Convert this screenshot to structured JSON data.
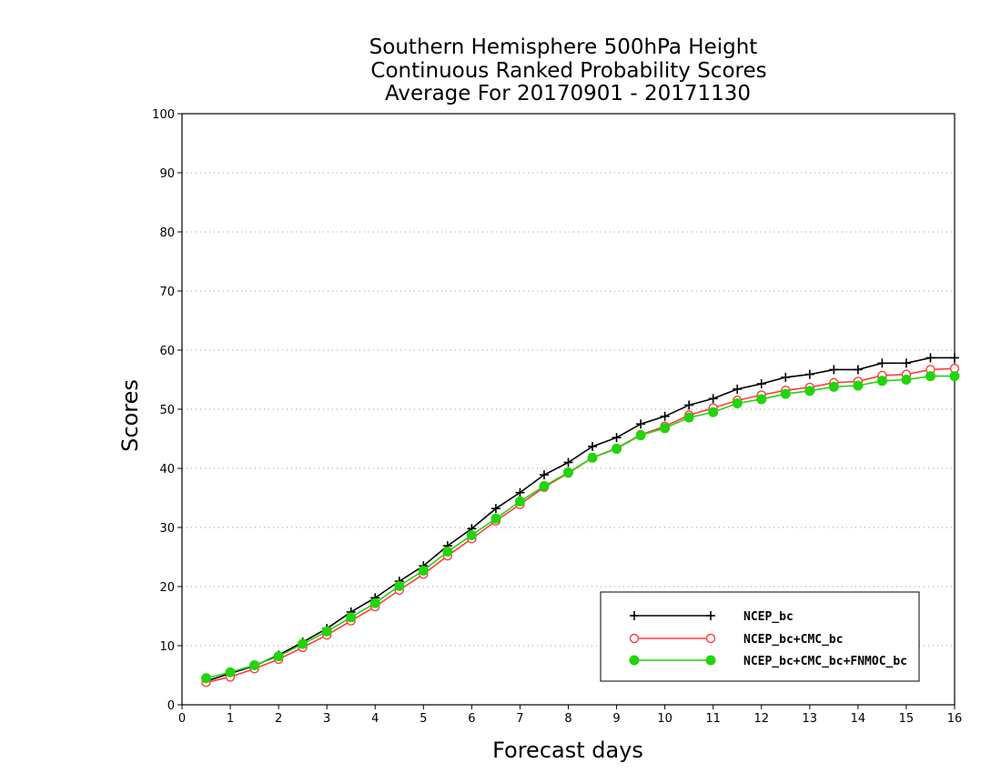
{
  "chart_data": {
    "type": "line",
    "title_lines": [
      "Southern Hemisphere 500hPa Height",
      "Continuous Ranked Probability Scores",
      "Average For 20170901 - 20171130"
    ],
    "xlabel": "Forecast days",
    "ylabel": "Scores",
    "xlim": [
      0,
      16
    ],
    "ylim": [
      0,
      100
    ],
    "x_ticks": [
      0,
      1,
      2,
      3,
      4,
      5,
      6,
      7,
      8,
      9,
      10,
      11,
      12,
      13,
      14,
      15,
      16
    ],
    "y_ticks": [
      0,
      10,
      20,
      30,
      40,
      50,
      60,
      70,
      80,
      90,
      100
    ],
    "grid": "horizontal-dotted",
    "legend_position": "bottom-right",
    "x": [
      0.5,
      1,
      1.5,
      2,
      2.5,
      3,
      3.5,
      4,
      4.5,
      5,
      5.5,
      6,
      6.5,
      7,
      7.5,
      8,
      8.5,
      9,
      9.5,
      10,
      10.5,
      11,
      11.5,
      12,
      12.5,
      13,
      13.5,
      14,
      14.5,
      15,
      15.5,
      16
    ],
    "series": [
      {
        "name": "NCEP_bc",
        "color": "#000000",
        "marker": "plus",
        "values": [
          4.0,
          5.3,
          6.6,
          8.4,
          10.6,
          12.9,
          15.7,
          18.1,
          20.9,
          23.5,
          26.9,
          29.8,
          33.2,
          35.9,
          38.9,
          41.0,
          43.7,
          45.2,
          47.5,
          48.8,
          50.7,
          51.8,
          53.4,
          54.3,
          55.4,
          55.9,
          56.7,
          56.7,
          57.8,
          57.8,
          58.7,
          58.7
        ]
      },
      {
        "name": "NCEP_bc+CMC_bc",
        "color": "#ff3b3b",
        "marker": "open-circle",
        "values": [
          3.8,
          4.7,
          6.1,
          7.7,
          9.7,
          11.8,
          14.2,
          16.6,
          19.4,
          22.1,
          25.2,
          28.1,
          31.1,
          33.9,
          36.8,
          39.2,
          41.8,
          43.4,
          45.7,
          47.1,
          49.0,
          50.2,
          51.5,
          52.4,
          53.2,
          53.7,
          54.5,
          54.7,
          55.7,
          55.9,
          56.7,
          56.9
        ]
      },
      {
        "name": "NCEP_bc+CMC_bc+FNMOC_bc",
        "color": "#22d40c",
        "marker": "filled-circle",
        "values": [
          4.5,
          5.5,
          6.7,
          8.2,
          10.3,
          12.4,
          14.8,
          17.2,
          20.1,
          22.7,
          25.9,
          28.7,
          31.5,
          34.4,
          37.0,
          39.3,
          41.8,
          43.3,
          45.6,
          46.8,
          48.6,
          49.5,
          51.0,
          51.7,
          52.6,
          53.1,
          53.8,
          54.0,
          54.8,
          55.0,
          55.6,
          55.6
        ]
      }
    ]
  }
}
